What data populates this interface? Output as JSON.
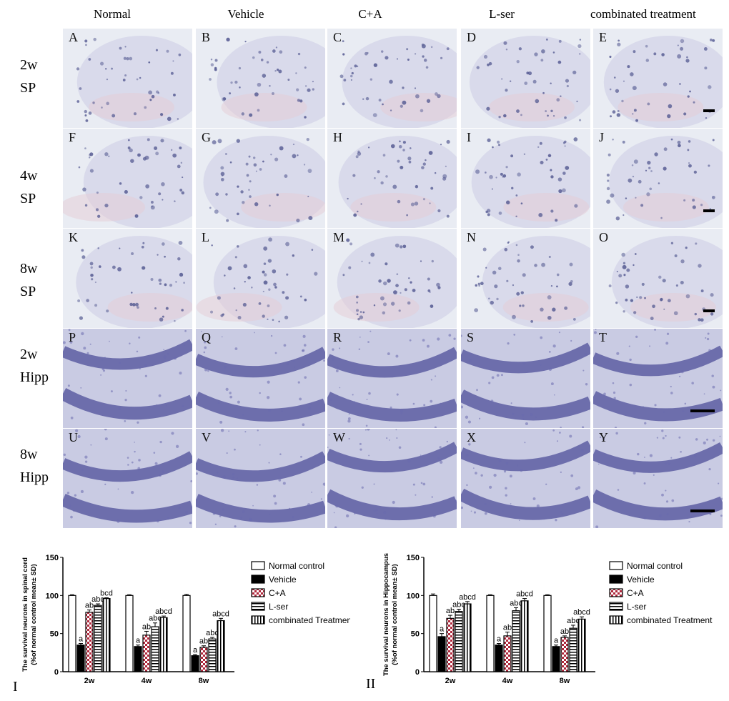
{
  "columns": [
    "Normal",
    "Vehicle",
    "C+A",
    "L-ser",
    "combinated treatment"
  ],
  "rows": [
    {
      "time": "2w",
      "region": "SP",
      "letters": [
        "A",
        "B",
        "C",
        "D",
        "E"
      ],
      "tone": "sp"
    },
    {
      "time": "4w",
      "region": "SP",
      "letters": [
        "F",
        "G",
        "H",
        "I",
        "J"
      ],
      "tone": "sp"
    },
    {
      "time": "8w",
      "region": "SP",
      "letters": [
        "K",
        "L",
        "M",
        "N",
        "O"
      ],
      "tone": "sp"
    },
    {
      "time": "2w",
      "region": "Hipp",
      "letters": [
        "P",
        "Q",
        "R",
        "S",
        "T"
      ],
      "tone": "hipp"
    },
    {
      "time": "8w",
      "region": "Hipp",
      "letters": [
        "U",
        "V",
        "W",
        "X",
        "Y"
      ],
      "tone": "hipp"
    }
  ],
  "colors": {
    "sp_bg": "#e9ecf3",
    "sp_cell": "#5a5f95",
    "hipp_bg": "#c9cbe3",
    "hipp_band": "#4d4f99"
  },
  "chart_data": [
    {
      "type": "bar",
      "figure_label": "I",
      "ylabel": "The survival neurons in spinal cord",
      "ylabel2": "(%of normal control mean± SD)",
      "categories": [
        "2w",
        "4w",
        "8w"
      ],
      "ylim": [
        0,
        150
      ],
      "yticks": [
        0,
        50,
        100,
        150
      ],
      "series": [
        {
          "name": "Normal control",
          "values": [
            100,
            100,
            100
          ],
          "errors": [
            1,
            1,
            1.5
          ],
          "labels": [
            "",
            "",
            ""
          ]
        },
        {
          "name": "Vehicle",
          "values": [
            35,
            33,
            21
          ],
          "errors": [
            2,
            2,
            1.5
          ],
          "labels": [
            "a",
            "a",
            "a"
          ]
        },
        {
          "name": "C+A",
          "values": [
            78,
            48,
            32
          ],
          "errors": [
            3,
            5,
            2
          ],
          "labels": [
            "ab",
            "ab",
            "ab"
          ]
        },
        {
          "name": "L-ser",
          "values": [
            87,
            59,
            43
          ],
          "errors": [
            2,
            5,
            2
          ],
          "labels": [
            "abc",
            "abc",
            "abc"
          ]
        },
        {
          "name": "combinated Treatment",
          "values": [
            96,
            71,
            67
          ],
          "errors": [
            1,
            2,
            3
          ],
          "labels": [
            "bcd",
            "abcd",
            "abcd"
          ]
        }
      ]
    },
    {
      "type": "bar",
      "figure_label": "II",
      "ylabel": "The survival neurons in Hippocampus",
      "ylabel2": "(%of normal control mean± SD)",
      "categories": [
        "2w",
        "4w",
        "8w"
      ],
      "ylim": [
        0,
        150
      ],
      "yticks": [
        0,
        50,
        100,
        150
      ],
      "series": [
        {
          "name": "Normal control",
          "values": [
            100,
            100,
            100
          ],
          "errors": [
            2,
            1,
            1
          ],
          "labels": [
            "",
            "",
            ""
          ]
        },
        {
          "name": "Vehicle",
          "values": [
            46,
            35,
            33
          ],
          "errors": [
            4,
            2,
            2
          ],
          "labels": [
            "a",
            "a",
            "a"
          ]
        },
        {
          "name": "C+A",
          "values": [
            70,
            47,
            45
          ],
          "errors": [
            4,
            5,
            2
          ],
          "labels": [
            "ab",
            "ab",
            "ab"
          ]
        },
        {
          "name": "L-ser",
          "values": [
            79,
            80,
            57
          ],
          "errors": [
            3,
            4,
            4
          ],
          "labels": [
            "abc",
            "abc",
            "abc"
          ]
        },
        {
          "name": "combinated Treatment",
          "values": [
            89,
            93,
            69
          ],
          "errors": [
            3,
            3,
            3
          ],
          "labels": [
            "abcd",
            "abcd",
            "abcd"
          ]
        }
      ]
    }
  ]
}
